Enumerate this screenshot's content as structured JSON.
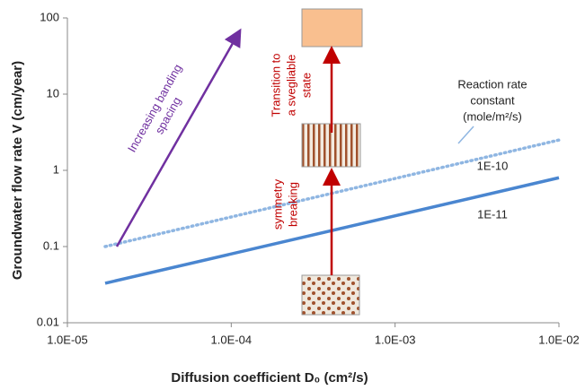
{
  "chart_data": {
    "type": "line",
    "log_x": true,
    "log_y": true,
    "x_label": "Diffusion coefficient D₀ (cm²/s)",
    "y_label": "Groundwater flow rate V (cm/year)",
    "x": [
      1.7e-05,
      0.01
    ],
    "series": [
      {
        "name": "1E-10",
        "color": "#8fb6e2",
        "dashed": true,
        "values": [
          0.1,
          2.5
        ]
      },
      {
        "name": "1E-11",
        "color": "#4a86d0",
        "dashed": false,
        "values": [
          0.033,
          0.8
        ]
      }
    ],
    "xlim": [
      1e-05,
      0.01
    ],
    "xticks": [
      {
        "value": 1e-05,
        "label": "1.0E-05"
      },
      {
        "value": 0.0001,
        "label": "1.0E-04"
      },
      {
        "value": 0.001,
        "label": "1.0E-03"
      },
      {
        "value": 0.01,
        "label": "1.0E-02"
      }
    ],
    "ylim": [
      0.01,
      100
    ],
    "yticks": [
      0.01,
      0.1,
      1,
      10,
      100
    ],
    "annotations": {
      "banding": [
        "Increasing banding",
        "spacing"
      ],
      "transition": [
        "Transition to",
        "a svegliable",
        "state"
      ],
      "symmetry": [
        "symmetry",
        "breaking"
      ],
      "rate_constant": [
        "Reaction rate",
        "constant",
        "(mole/m²/s)"
      ]
    }
  }
}
